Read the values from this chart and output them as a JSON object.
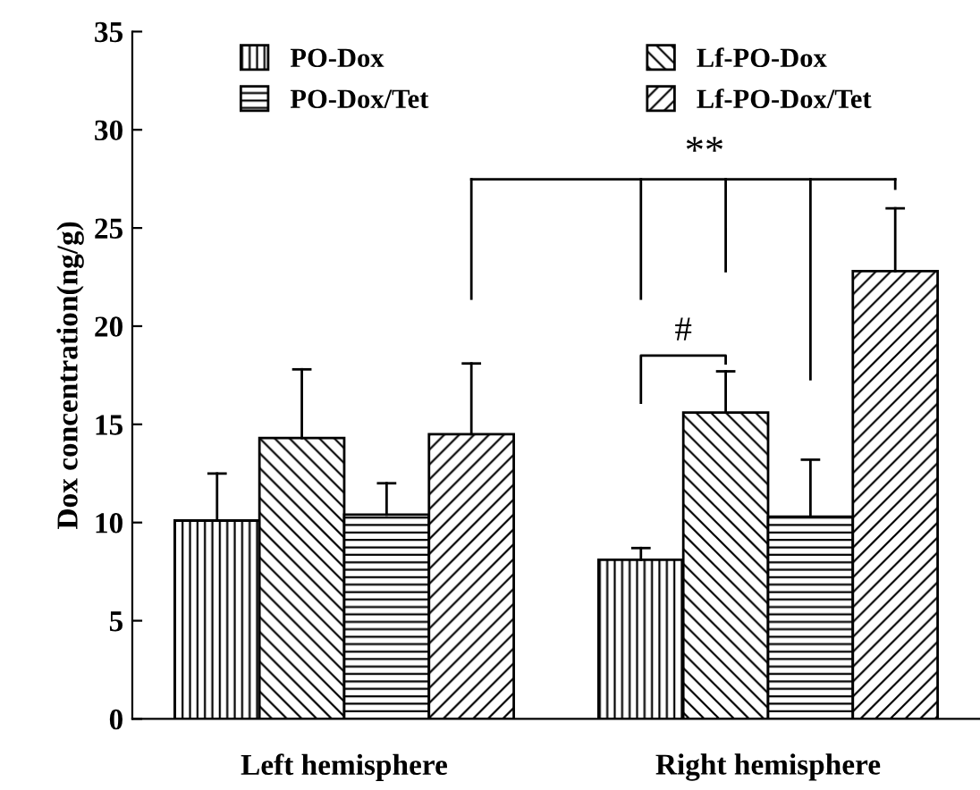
{
  "chart_data": {
    "type": "bar",
    "ylabel": "Dox concentration(ng/g)",
    "categories": [
      "Left hemisphere",
      "Right hemisphere"
    ],
    "series": [
      {
        "name": "PO-Dox",
        "color": "#000000",
        "values": [
          10.1,
          8.1
        ],
        "errors": [
          [
            10.1,
            12.5
          ],
          [
            8.1,
            8.7
          ]
        ]
      },
      {
        "name": "Lf-PO-Dox",
        "color": "#000000",
        "values": [
          14.3,
          15.6
        ],
        "errors": [
          [
            14.3,
            17.8
          ],
          [
            15.6,
            17.7
          ]
        ]
      },
      {
        "name": "PO-Dox/Tet",
        "color": "#000000",
        "values": [
          10.4,
          10.3
        ],
        "errors": [
          [
            10.4,
            12.0
          ],
          [
            10.3,
            13.2
          ]
        ]
      },
      {
        "name": "Lf-PO-Dox/Tet",
        "color": "#000000",
        "values": [
          14.5,
          22.8
        ],
        "errors": [
          [
            14.5,
            18.1
          ],
          [
            22.8,
            26.0
          ]
        ]
      }
    ],
    "ylim": [
      0,
      35
    ],
    "yticks": [
      0,
      5,
      10,
      15,
      20,
      25,
      30,
      35
    ],
    "annotations": [
      "**",
      "#"
    ],
    "legend": "top",
    "grid": false
  }
}
